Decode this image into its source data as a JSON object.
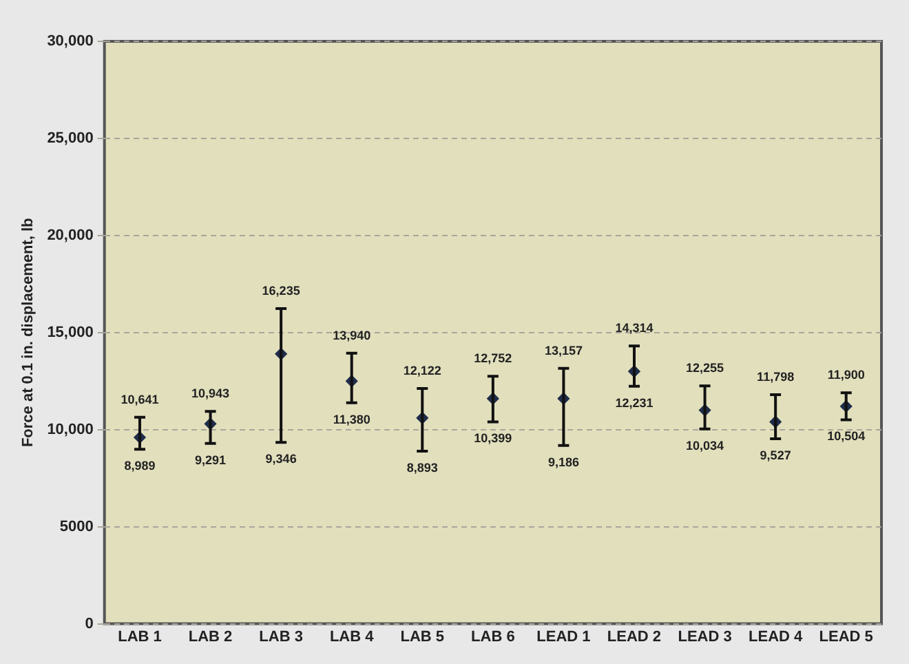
{
  "chart_data": {
    "type": "scatter",
    "ylabel": "Force at 0.1 in. displacement, lb",
    "categories": [
      "LAB 1",
      "LAB 2",
      "LAB 3",
      "LAB 4",
      "LAB 5",
      "LAB 6",
      "LEAD 1",
      "LEAD 2",
      "LEAD 3",
      "LEAD 4",
      "LEAD 5"
    ],
    "values": [
      9600,
      10300,
      13900,
      12500,
      10600,
      11600,
      11600,
      13000,
      11000,
      10400,
      11200
    ],
    "errors": [
      [
        8989,
        10641
      ],
      [
        9291,
        10943
      ],
      [
        9346,
        16235
      ],
      [
        11380,
        13940
      ],
      [
        8893,
        12122
      ],
      [
        10399,
        12752
      ],
      [
        9186,
        13157
      ],
      [
        12231,
        14314
      ],
      [
        10034,
        12255
      ],
      [
        9527,
        11798
      ],
      [
        10504,
        11900
      ]
    ],
    "color": "#1f2d4a",
    "marker": "diamond",
    "ylim": [
      0,
      30000
    ],
    "yticks": [
      0,
      {
        "value": 5000,
        "label": "5000"
      },
      {
        "value": 10000,
        "label": "10,000"
      },
      {
        "value": 15000,
        "label": "15,000"
      },
      {
        "value": 20000,
        "label": "20,000"
      },
      {
        "value": 25000,
        "label": "25,000"
      },
      {
        "value": 30000,
        "label": "30,000"
      }
    ],
    "grid": "y",
    "annotations": [
      {
        "text": "10,641",
        "x": "LAB 1",
        "y": 10641
      },
      {
        "text": "8,989",
        "x": "LAB 1",
        "y": 8989
      },
      {
        "text": "10,943",
        "x": "LAB 2",
        "y": 10943
      },
      {
        "text": "9,291",
        "x": "LAB 2",
        "y": 9291
      },
      {
        "text": "16,235",
        "x": "LAB 3",
        "y": 16235
      },
      {
        "text": "9,346",
        "x": "LAB 3",
        "y": 9346
      },
      {
        "text": "13,940",
        "x": "LAB 4",
        "y": 13940
      },
      {
        "text": "11,380",
        "x": "LAB 4",
        "y": 11380
      },
      {
        "text": "12,122",
        "x": "LAB 5",
        "y": 12122
      },
      {
        "text": "8,893",
        "x": "LAB 5",
        "y": 8893
      },
      {
        "text": "12,752",
        "x": "LAB 6",
        "y": 12752
      },
      {
        "text": "10,399",
        "x": "LAB 6",
        "y": 10399
      },
      {
        "text": "13,157",
        "x": "LEAD 1",
        "y": 13157
      },
      {
        "text": "9,186",
        "x": "LEAD 1",
        "y": 9186
      },
      {
        "text": "14,314",
        "x": "LEAD 2",
        "y": 14314
      },
      {
        "text": "12,231",
        "x": "LEAD 2",
        "y": 12231
      },
      {
        "text": "12,255",
        "x": "LEAD 3",
        "y": 12255
      },
      {
        "text": "10,034",
        "x": "LEAD 3",
        "y": 10034
      },
      {
        "text": "11,798",
        "x": "LEAD 4",
        "y": 11798
      },
      {
        "text": "9,527",
        "x": "LEAD 4",
        "y": 9527
      },
      {
        "text": "11,900",
        "x": "LEAD 5",
        "y": 11900
      },
      {
        "text": "10,504",
        "x": "LEAD 5",
        "y": 10504
      }
    ]
  }
}
